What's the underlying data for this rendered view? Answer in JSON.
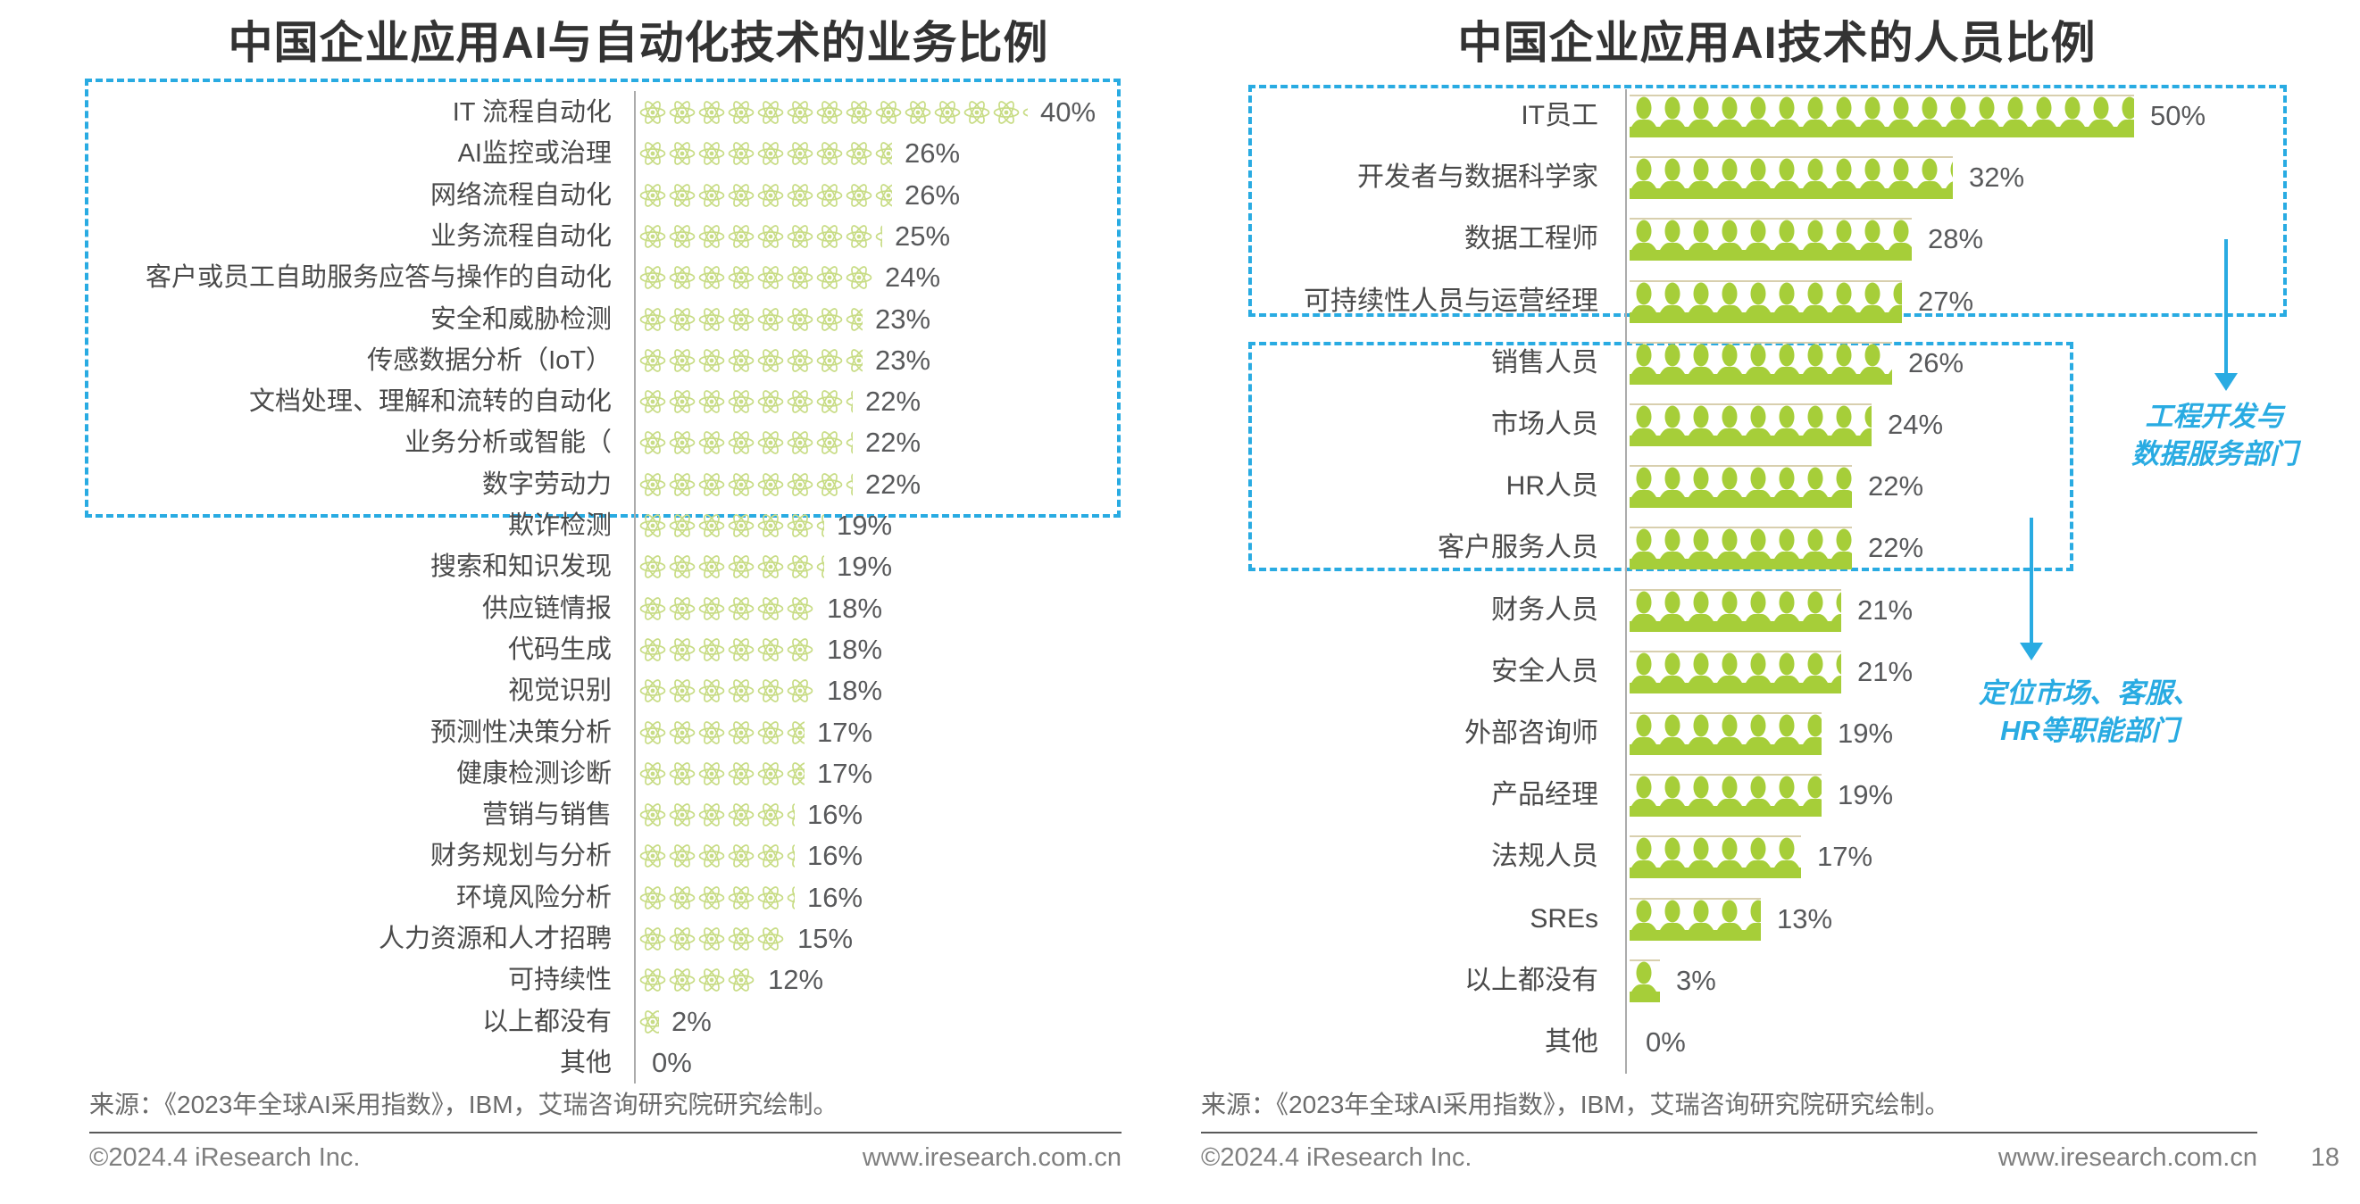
{
  "colors": {
    "accent_cyan": "#29abe2",
    "bar_green": "#a6ce39",
    "icon_green": "#c8dc85",
    "bar_topline": "#d8cfae",
    "text_dark": "#333333",
    "text_gray": "#58595b"
  },
  "chart_data": [
    {
      "type": "bar",
      "orientation": "horizontal",
      "pictogram": "atom-icons",
      "title": "中国企业应用AI与自动化技术的业务比例",
      "unit": "%",
      "xlabel": "",
      "ylabel": "",
      "xlim": [
        0,
        45
      ],
      "categories": [
        "IT 流程自动化",
        "AI监控或治理",
        "网络流程自动化",
        "业务流程自动化",
        "客户或员工自助服务应答与操作的自动化",
        "安全和威胁检测",
        "传感数据分析（IoT）",
        "文档处理、理解和流转的自动化",
        "业务分析或智能（",
        "数字劳动力",
        "欺诈检测",
        "搜索和知识发现",
        "供应链情报",
        "代码生成",
        "视觉识别",
        "预测性决策分析",
        "健康检测诊断",
        "营销与销售",
        "财务规划与分析",
        "环境风险分析",
        "人力资源和人才招聘",
        "可持续性",
        "以上都没有",
        "其他"
      ],
      "values": [
        40,
        26,
        26,
        25,
        24,
        23,
        23,
        22,
        22,
        22,
        19,
        19,
        18,
        18,
        18,
        17,
        17,
        16,
        16,
        16,
        15,
        12,
        2,
        0
      ],
      "highlight_box_rows": "rows 1-10",
      "source": "来源：《2023年全球AI采用指数》，IBM，艾瑞咨询研究院研究绘制。"
    },
    {
      "type": "bar",
      "orientation": "horizontal",
      "pictogram": "people-bars",
      "title": "中国企业应用AI技术的人员比例",
      "unit": "%",
      "xlabel": "",
      "ylabel": "",
      "xlim": [
        0,
        55
      ],
      "categories": [
        "IT员工",
        "开发者与数据科学家",
        "数据工程师",
        "可持续性人员与运营经理",
        "销售人员",
        "市场人员",
        "HR人员",
        "客户服务人员",
        "财务人员",
        "安全人员",
        "外部咨询师",
        "产品经理",
        "法规人员",
        "SREs",
        "以上都没有",
        "其他"
      ],
      "values": [
        50,
        32,
        28,
        27,
        26,
        24,
        22,
        22,
        21,
        21,
        19,
        19,
        17,
        13,
        3,
        0
      ],
      "highlight_box_rows": "rows 1-4 and rows 5-8",
      "annotations": [
        {
          "line1": "工程开发与",
          "line2": "数据服务部门"
        },
        {
          "line1": "定位市场、客服、",
          "line2": "HR等职能部门"
        }
      ],
      "source": "来源：《2023年全球AI采用指数》，IBM，艾瑞咨询研究院研究绘制。"
    }
  ],
  "footer": {
    "copyright": "©2024.4 iResearch Inc.",
    "website": "www.iresearch.com.cn",
    "page": "18"
  }
}
